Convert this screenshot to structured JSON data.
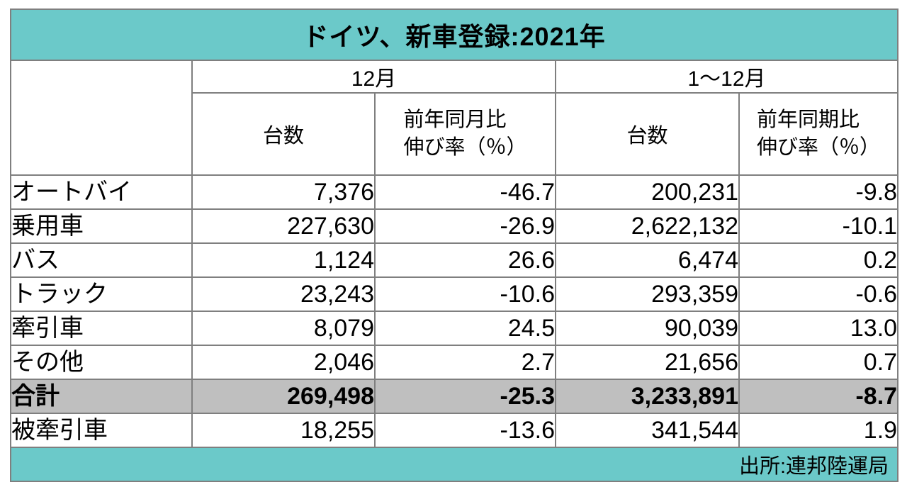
{
  "title": "ドイツ、新車登録:2021年",
  "table_headers": {
    "corner": "",
    "group_december": "12月",
    "group_jan_dec": "1～12月",
    "units_december": "台数",
    "units_jan_dec": "台数",
    "yoy_december_line1": "前年同月比",
    "yoy_december_line2": "伸び率（％）",
    "yoy_jan_dec_line1": "前年同期比",
    "yoy_jan_dec_line2": "伸び率（％）"
  },
  "footer": {
    "source_label": "出所:連邦陸運局"
  },
  "colors": {
    "accent_teal": "#6bc9c9",
    "total_row_gray": "#bfbfbf",
    "border_gray": "#7f7f7f",
    "text_black": "#000000",
    "background_white": "#ffffff"
  },
  "chart_data": {
    "type": "table",
    "title": "ドイツ、新車登録:2021年",
    "column_groups": [
      "12月",
      "1～12月"
    ],
    "columns": [
      "台数",
      "前年同月比伸び率（％）",
      "台数",
      "前年同期比伸び率（％）"
    ],
    "rows": [
      {
        "label": "オートバイ",
        "dec_units": "7,376",
        "dec_yoy": "-46.7",
        "ytd_units": "200,231",
        "ytd_yoy": "-9.8"
      },
      {
        "label": "乗用車",
        "dec_units": "227,630",
        "dec_yoy": "-26.9",
        "ytd_units": "2,622,132",
        "ytd_yoy": "-10.1"
      },
      {
        "label": "バス",
        "dec_units": "1,124",
        "dec_yoy": "26.6",
        "ytd_units": "6,474",
        "ytd_yoy": "0.2"
      },
      {
        "label": "トラック",
        "dec_units": "23,243",
        "dec_yoy": "-10.6",
        "ytd_units": "293,359",
        "ytd_yoy": "-0.6"
      },
      {
        "label": "牽引車",
        "dec_units": "8,079",
        "dec_yoy": "24.5",
        "ytd_units": "90,039",
        "ytd_yoy": "13.0"
      },
      {
        "label": "その他",
        "dec_units": "2,046",
        "dec_yoy": "2.7",
        "ytd_units": "21,656",
        "ytd_yoy": "0.7"
      },
      {
        "label": "合計",
        "dec_units": "269,498",
        "dec_yoy": "-25.3",
        "ytd_units": "3,233,891",
        "ytd_yoy": "-8.7",
        "is_total": true
      },
      {
        "label": "被牽引車",
        "dec_units": "18,255",
        "dec_yoy": "-13.6",
        "ytd_units": "341,544",
        "ytd_yoy": "1.9"
      }
    ],
    "source": "出所:連邦陸運局"
  }
}
